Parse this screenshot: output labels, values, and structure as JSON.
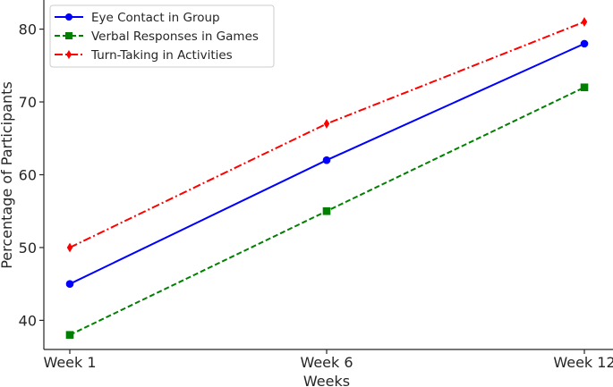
{
  "chart_data": {
    "type": "line",
    "title": "",
    "xlabel": "Weeks",
    "ylabel": "Percentage of Participants",
    "categories": [
      "Week 1",
      "Week 6",
      "Week 12"
    ],
    "ylim": [
      36,
      84
    ],
    "yticks": [
      40,
      50,
      60,
      70,
      80
    ],
    "grid": false,
    "legend_position": "top-left",
    "series": [
      {
        "name": "Eye Contact in Group",
        "values": [
          45,
          62,
          78
        ],
        "color": "#0000ff",
        "linestyle": "solid",
        "marker": "circle"
      },
      {
        "name": "Verbal Responses in Games",
        "values": [
          38,
          55,
          72
        ],
        "color": "#008000",
        "linestyle": "dashed",
        "marker": "square"
      },
      {
        "name": "Turn-Taking in Activities",
        "values": [
          50,
          67,
          81
        ],
        "color": "#ff0000",
        "linestyle": "dashdot",
        "marker": "diamond"
      }
    ]
  }
}
